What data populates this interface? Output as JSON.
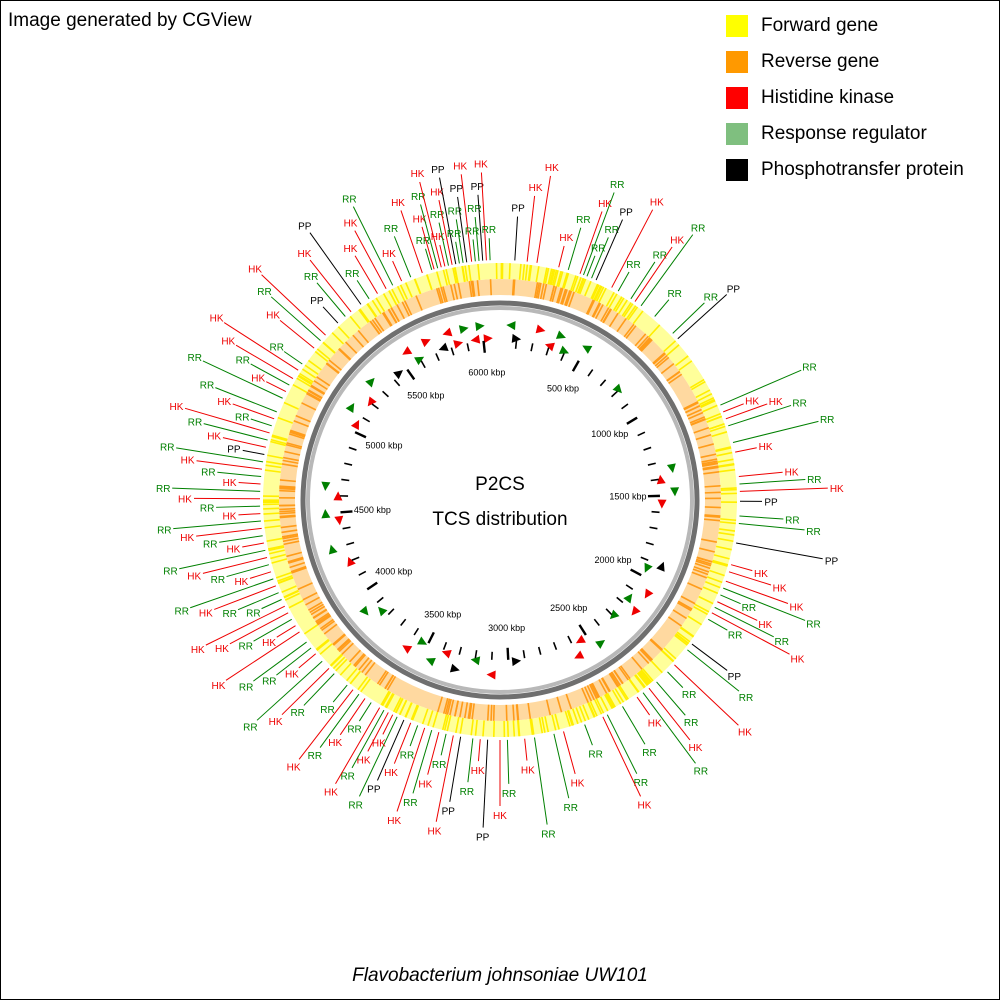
{
  "credit": "Image generated by CGView",
  "title": "P2CS",
  "subtitle": "TCS distribution",
  "organism": "Flavobacterium johnsoniae UW101",
  "legend": [
    {
      "label": "Forward gene",
      "color": "#ffff00"
    },
    {
      "label": "Reverse gene",
      "color": "#ff9900"
    },
    {
      "label": "Histidine kinase",
      "color": "#ff0000"
    },
    {
      "label": "Response regulator",
      "color": "#7fbf7f"
    },
    {
      "label": "Phosphotransfer protein",
      "color": "#000000"
    }
  ],
  "colors": {
    "HK": "#ee0000",
    "RR": "#008000",
    "PP": "#000000",
    "ring": "#888888"
  },
  "axis": {
    "genome_kbp": 6100,
    "ticks": [
      {
        "kbp": 500,
        "label": "500 kbp"
      },
      {
        "kbp": 1000,
        "label": "1000 kbp"
      },
      {
        "kbp": 1500,
        "label": "1500 kbp"
      },
      {
        "kbp": 2000,
        "label": "2000 kbp"
      },
      {
        "kbp": 2500,
        "label": "2500 kbp"
      },
      {
        "kbp": 3000,
        "label": "3000 kbp"
      },
      {
        "kbp": 3500,
        "label": "3500 kbp"
      },
      {
        "kbp": 4000,
        "label": "4000 kbp"
      },
      {
        "kbp": 4500,
        "label": "4500 kbp"
      },
      {
        "kbp": 5000,
        "label": "5000 kbp"
      },
      {
        "kbp": 5500,
        "label": "5500 kbp"
      },
      {
        "kbp": 6000,
        "label": "6000 kbp"
      }
    ]
  },
  "features": [
    {
      "t": "RR",
      "kbp": 5820
    },
    {
      "t": "HK",
      "kbp": 5830
    },
    {
      "t": "RR",
      "kbp": 5845
    },
    {
      "t": "HK",
      "kbp": 5860
    },
    {
      "t": "HK",
      "kbp": 5875
    },
    {
      "t": "RR",
      "kbp": 5890
    },
    {
      "t": "HK",
      "kbp": 5905
    },
    {
      "t": "PP",
      "kbp": 5920
    },
    {
      "t": "RR",
      "kbp": 5935
    },
    {
      "t": "RR",
      "kbp": 5950
    },
    {
      "t": "PP",
      "kbp": 5965
    },
    {
      "t": "HK",
      "kbp": 5985
    },
    {
      "t": "RR",
      "kbp": 6000
    },
    {
      "t": "RR",
      "kbp": 6015
    },
    {
      "t": "PP",
      "kbp": 6030
    },
    {
      "t": "HK",
      "kbp": 6045
    },
    {
      "t": "RR",
      "kbp": 6060
    },
    {
      "t": "PP",
      "kbp": 60
    },
    {
      "t": "HK",
      "kbp": 110
    },
    {
      "t": "HK",
      "kbp": 150
    },
    {
      "t": "HK",
      "kbp": 240
    },
    {
      "t": "RR",
      "kbp": 280
    },
    {
      "t": "HK",
      "kbp": 330
    },
    {
      "t": "RR",
      "kbp": 345
    },
    {
      "t": "RR",
      "kbp": 360
    },
    {
      "t": "RR",
      "kbp": 380
    },
    {
      "t": "PP",
      "kbp": 400
    },
    {
      "t": "HK",
      "kbp": 470
    },
    {
      "t": "RR",
      "kbp": 500
    },
    {
      "t": "RR",
      "kbp": 560
    },
    {
      "t": "HK",
      "kbp": 580
    },
    {
      "t": "RR",
      "kbp": 610
    },
    {
      "t": "RR",
      "kbp": 680
    },
    {
      "t": "RR",
      "kbp": 780
    },
    {
      "t": "PP",
      "kbp": 810
    },
    {
      "t": "RR",
      "kbp": 1130
    },
    {
      "t": "HK",
      "kbp": 1160
    },
    {
      "t": "HK",
      "kbp": 1190
    },
    {
      "t": "RR",
      "kbp": 1220
    },
    {
      "t": "RR",
      "kbp": 1290
    },
    {
      "t": "HK",
      "kbp": 1330
    },
    {
      "t": "HK",
      "kbp": 1430
    },
    {
      "t": "RR",
      "kbp": 1460
    },
    {
      "t": "HK",
      "kbp": 1490
    },
    {
      "t": "PP",
      "kbp": 1530
    },
    {
      "t": "RR",
      "kbp": 1590
    },
    {
      "t": "RR",
      "kbp": 1620
    },
    {
      "t": "PP",
      "kbp": 1700
    },
    {
      "t": "HK",
      "kbp": 1790
    },
    {
      "t": "HK",
      "kbp": 1820
    },
    {
      "t": "HK",
      "kbp": 1860
    },
    {
      "t": "RR",
      "kbp": 1890
    },
    {
      "t": "RR",
      "kbp": 1920
    },
    {
      "t": "HK",
      "kbp": 1950
    },
    {
      "t": "RR",
      "kbp": 1975
    },
    {
      "t": "HK",
      "kbp": 2000
    },
    {
      "t": "RR",
      "kbp": 2030
    },
    {
      "t": "PP",
      "kbp": 2150
    },
    {
      "t": "RR",
      "kbp": 2180
    },
    {
      "t": "HK",
      "kbp": 2260
    },
    {
      "t": "RR",
      "kbp": 2300
    },
    {
      "t": "RR",
      "kbp": 2360
    },
    {
      "t": "HK",
      "kbp": 2400
    },
    {
      "t": "RR",
      "kbp": 2430
    },
    {
      "t": "HK",
      "kbp": 2460
    },
    {
      "t": "RR",
      "kbp": 2530
    },
    {
      "t": "RR",
      "kbp": 2600
    },
    {
      "t": "HK",
      "kbp": 2620
    },
    {
      "t": "RR",
      "kbp": 2700
    },
    {
      "t": "HK",
      "kbp": 2790
    },
    {
      "t": "RR",
      "kbp": 2830
    },
    {
      "t": "RR",
      "kbp": 2910
    },
    {
      "t": "HK",
      "kbp": 2950
    },
    {
      "t": "RR",
      "kbp": 3020
    },
    {
      "t": "HK",
      "kbp": 3050
    },
    {
      "t": "PP",
      "kbp": 3100
    },
    {
      "t": "HK",
      "kbp": 3130
    },
    {
      "t": "RR",
      "kbp": 3160
    },
    {
      "t": "PP",
      "kbp": 3210
    },
    {
      "t": "HK",
      "kbp": 3240
    },
    {
      "t": "RR",
      "kbp": 3270
    },
    {
      "t": "HK",
      "kbp": 3300
    },
    {
      "t": "RR",
      "kbp": 3330
    },
    {
      "t": "HK",
      "kbp": 3360
    },
    {
      "t": "RR",
      "kbp": 3390
    },
    {
      "t": "HK",
      "kbp": 3420
    },
    {
      "t": "PP",
      "kbp": 3450
    },
    {
      "t": "RR",
      "kbp": 3480
    },
    {
      "t": "HK",
      "kbp": 3500
    },
    {
      "t": "HK",
      "kbp": 3520
    },
    {
      "t": "RR",
      "kbp": 3540
    },
    {
      "t": "HK",
      "kbp": 3560
    },
    {
      "t": "RR",
      "kbp": 3600
    },
    {
      "t": "HK",
      "kbp": 3630
    },
    {
      "t": "RR",
      "kbp": 3660
    },
    {
      "t": "HK",
      "kbp": 3690
    },
    {
      "t": "RR",
      "kbp": 3720
    },
    {
      "t": "RR",
      "kbp": 3790
    },
    {
      "t": "HK",
      "kbp": 3820
    },
    {
      "t": "RR",
      "kbp": 3860
    },
    {
      "t": "HK",
      "kbp": 3900
    },
    {
      "t": "RR",
      "kbp": 3930
    },
    {
      "t": "RR",
      "kbp": 3960
    },
    {
      "t": "HK",
      "kbp": 4010
    },
    {
      "t": "HK",
      "kbp": 4040
    },
    {
      "t": "RR",
      "kbp": 4070
    },
    {
      "t": "HK",
      "kbp": 4100
    },
    {
      "t": "HK",
      "kbp": 4130
    },
    {
      "t": "RR",
      "kbp": 4160
    },
    {
      "t": "RR",
      "kbp": 4190
    },
    {
      "t": "HK",
      "kbp": 4220
    },
    {
      "t": "RR",
      "kbp": 4250
    },
    {
      "t": "HK",
      "kbp": 4280
    },
    {
      "t": "RR",
      "kbp": 4310
    },
    {
      "t": "HK",
      "kbp": 4340
    },
    {
      "t": "RR",
      "kbp": 4370
    },
    {
      "t": "HK",
      "kbp": 4400
    },
    {
      "t": "RR",
      "kbp": 4430
    },
    {
      "t": "HK",
      "kbp": 4460
    },
    {
      "t": "RR",
      "kbp": 4490
    },
    {
      "t": "HK",
      "kbp": 4520
    },
    {
      "t": "RR",
      "kbp": 4550
    },
    {
      "t": "HK",
      "kbp": 4580
    },
    {
      "t": "RR",
      "kbp": 4610
    },
    {
      "t": "HK",
      "kbp": 4640
    },
    {
      "t": "RR",
      "kbp": 4670
    },
    {
      "t": "HK",
      "kbp": 4700
    },
    {
      "t": "RR",
      "kbp": 4730
    },
    {
      "t": "PP",
      "kbp": 4760
    },
    {
      "t": "HK",
      "kbp": 4790
    },
    {
      "t": "RR",
      "kbp": 4820
    },
    {
      "t": "HK",
      "kbp": 4850
    },
    {
      "t": "RR",
      "kbp": 4880
    },
    {
      "t": "HK",
      "kbp": 4910
    },
    {
      "t": "RR",
      "kbp": 4940
    },
    {
      "t": "RR",
      "kbp": 5000
    },
    {
      "t": "HK",
      "kbp": 5030
    },
    {
      "t": "RR",
      "kbp": 5060
    },
    {
      "t": "HK",
      "kbp": 5090
    },
    {
      "t": "HK",
      "kbp": 5130
    },
    {
      "t": "RR",
      "kbp": 5160
    },
    {
      "t": "HK",
      "kbp": 5240
    },
    {
      "t": "RR",
      "kbp": 5280
    },
    {
      "t": "HK",
      "kbp": 5310
    },
    {
      "t": "PP",
      "kbp": 5380
    },
    {
      "t": "RR",
      "kbp": 5420
    },
    {
      "t": "HK",
      "kbp": 5450
    },
    {
      "t": "PP",
      "kbp": 5500
    },
    {
      "t": "RR",
      "kbp": 5540
    },
    {
      "t": "HK",
      "kbp": 5580
    },
    {
      "t": "HK",
      "kbp": 5620
    },
    {
      "t": "RR",
      "kbp": 5650
    },
    {
      "t": "HK",
      "kbp": 5690
    },
    {
      "t": "RR",
      "kbp": 5730
    },
    {
      "t": "HK",
      "kbp": 5780
    }
  ],
  "inner_markers": [
    {
      "t": "HK",
      "kbp": 5800
    },
    {
      "t": "HK",
      "kbp": 5850
    },
    {
      "t": "RR",
      "kbp": 5900
    },
    {
      "t": "HK",
      "kbp": 5950
    },
    {
      "t": "RR",
      "kbp": 5990
    },
    {
      "t": "HK",
      "kbp": 6030
    },
    {
      "t": "RR",
      "kbp": 60
    },
    {
      "t": "PP",
      "kbp": 100
    },
    {
      "t": "HK",
      "kbp": 230
    },
    {
      "t": "HK",
      "kbp": 300
    },
    {
      "t": "RR",
      "kbp": 350
    },
    {
      "t": "RR",
      "kbp": 400
    },
    {
      "t": "RR",
      "kbp": 500
    },
    {
      "t": "RR",
      "kbp": 800
    },
    {
      "t": "RR",
      "kbp": 1350
    },
    {
      "t": "HK",
      "kbp": 1400
    },
    {
      "t": "RR",
      "kbp": 1480
    },
    {
      "t": "HK",
      "kbp": 1550
    },
    {
      "t": "PP",
      "kbp": 1900
    },
    {
      "t": "RR",
      "kbp": 1950
    },
    {
      "t": "HK",
      "kbp": 2080
    },
    {
      "t": "RR",
      "kbp": 2150
    },
    {
      "t": "HK",
      "kbp": 2200
    },
    {
      "t": "RR",
      "kbp": 2300
    },
    {
      "t": "RR",
      "kbp": 2450
    },
    {
      "t": "HK",
      "kbp": 2550
    },
    {
      "t": "HK",
      "kbp": 2600
    },
    {
      "t": "PP",
      "kbp": 2950
    },
    {
      "t": "HK",
      "kbp": 3100
    },
    {
      "t": "RR",
      "kbp": 3200
    },
    {
      "t": "PP",
      "kbp": 3300
    },
    {
      "t": "HK",
      "kbp": 3380
    },
    {
      "t": "RR",
      "kbp": 3450
    },
    {
      "t": "RR",
      "kbp": 3530
    },
    {
      "t": "HK",
      "kbp": 3600
    },
    {
      "t": "RR",
      "kbp": 3850
    },
    {
      "t": "RR",
      "kbp": 3900
    },
    {
      "t": "HK",
      "kbp": 4200
    },
    {
      "t": "RR",
      "kbp": 4300
    },
    {
      "t": "HK",
      "kbp": 4450
    },
    {
      "t": "RR",
      "kbp": 4500
    },
    {
      "t": "HK",
      "kbp": 4600
    },
    {
      "t": "RR",
      "kbp": 4650
    },
    {
      "t": "HK",
      "kbp": 5050
    },
    {
      "t": "RR",
      "kbp": 5120
    },
    {
      "t": "HK",
      "kbp": 5200
    },
    {
      "t": "RR",
      "kbp": 5300
    },
    {
      "t": "PP",
      "kbp": 5450
    },
    {
      "t": "HK",
      "kbp": 5550
    },
    {
      "t": "RR",
      "kbp": 5600
    },
    {
      "t": "HK",
      "kbp": 5680
    },
    {
      "t": "PP",
      "kbp": 5750
    }
  ]
}
